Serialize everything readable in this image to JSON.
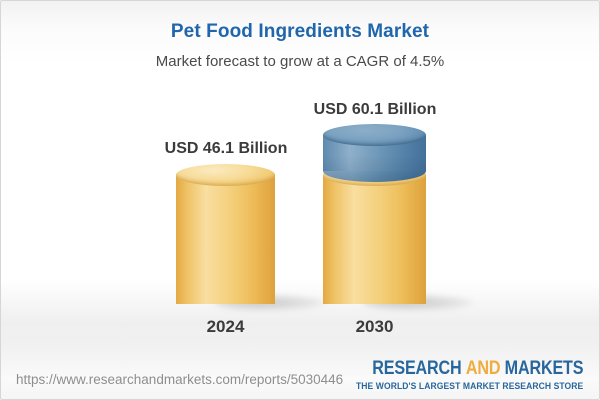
{
  "header": {
    "title": "Pet Food Ingredients Market",
    "subtitle": "Market forecast to grow at a CAGR of 4.5%"
  },
  "chart_data": {
    "type": "bar",
    "variant": "3d-cylinder",
    "categories": [
      "2024",
      "2030"
    ],
    "values": [
      46.1,
      60.1
    ],
    "unit": "USD Billion",
    "value_labels": [
      "USD 46.1 Billion",
      "USD 60.1 Billion"
    ],
    "cagr_percent": 4.5,
    "legend": "none",
    "grid": false,
    "colors": {
      "base_segment": "#F2CB72",
      "growth_segment": "#5988B0",
      "label_text": "#3B3B3B"
    }
  },
  "footer": {
    "url": "https://www.researchandmarkets.com/reports/5030446",
    "logo": {
      "word1": "RESEARCH",
      "word2": "AND",
      "word3": "MARKETS",
      "tagline": "THE WORLD'S LARGEST MARKET RESEARCH STORE",
      "color_primary": "#28679E",
      "color_accent": "#F0AC3C"
    }
  }
}
